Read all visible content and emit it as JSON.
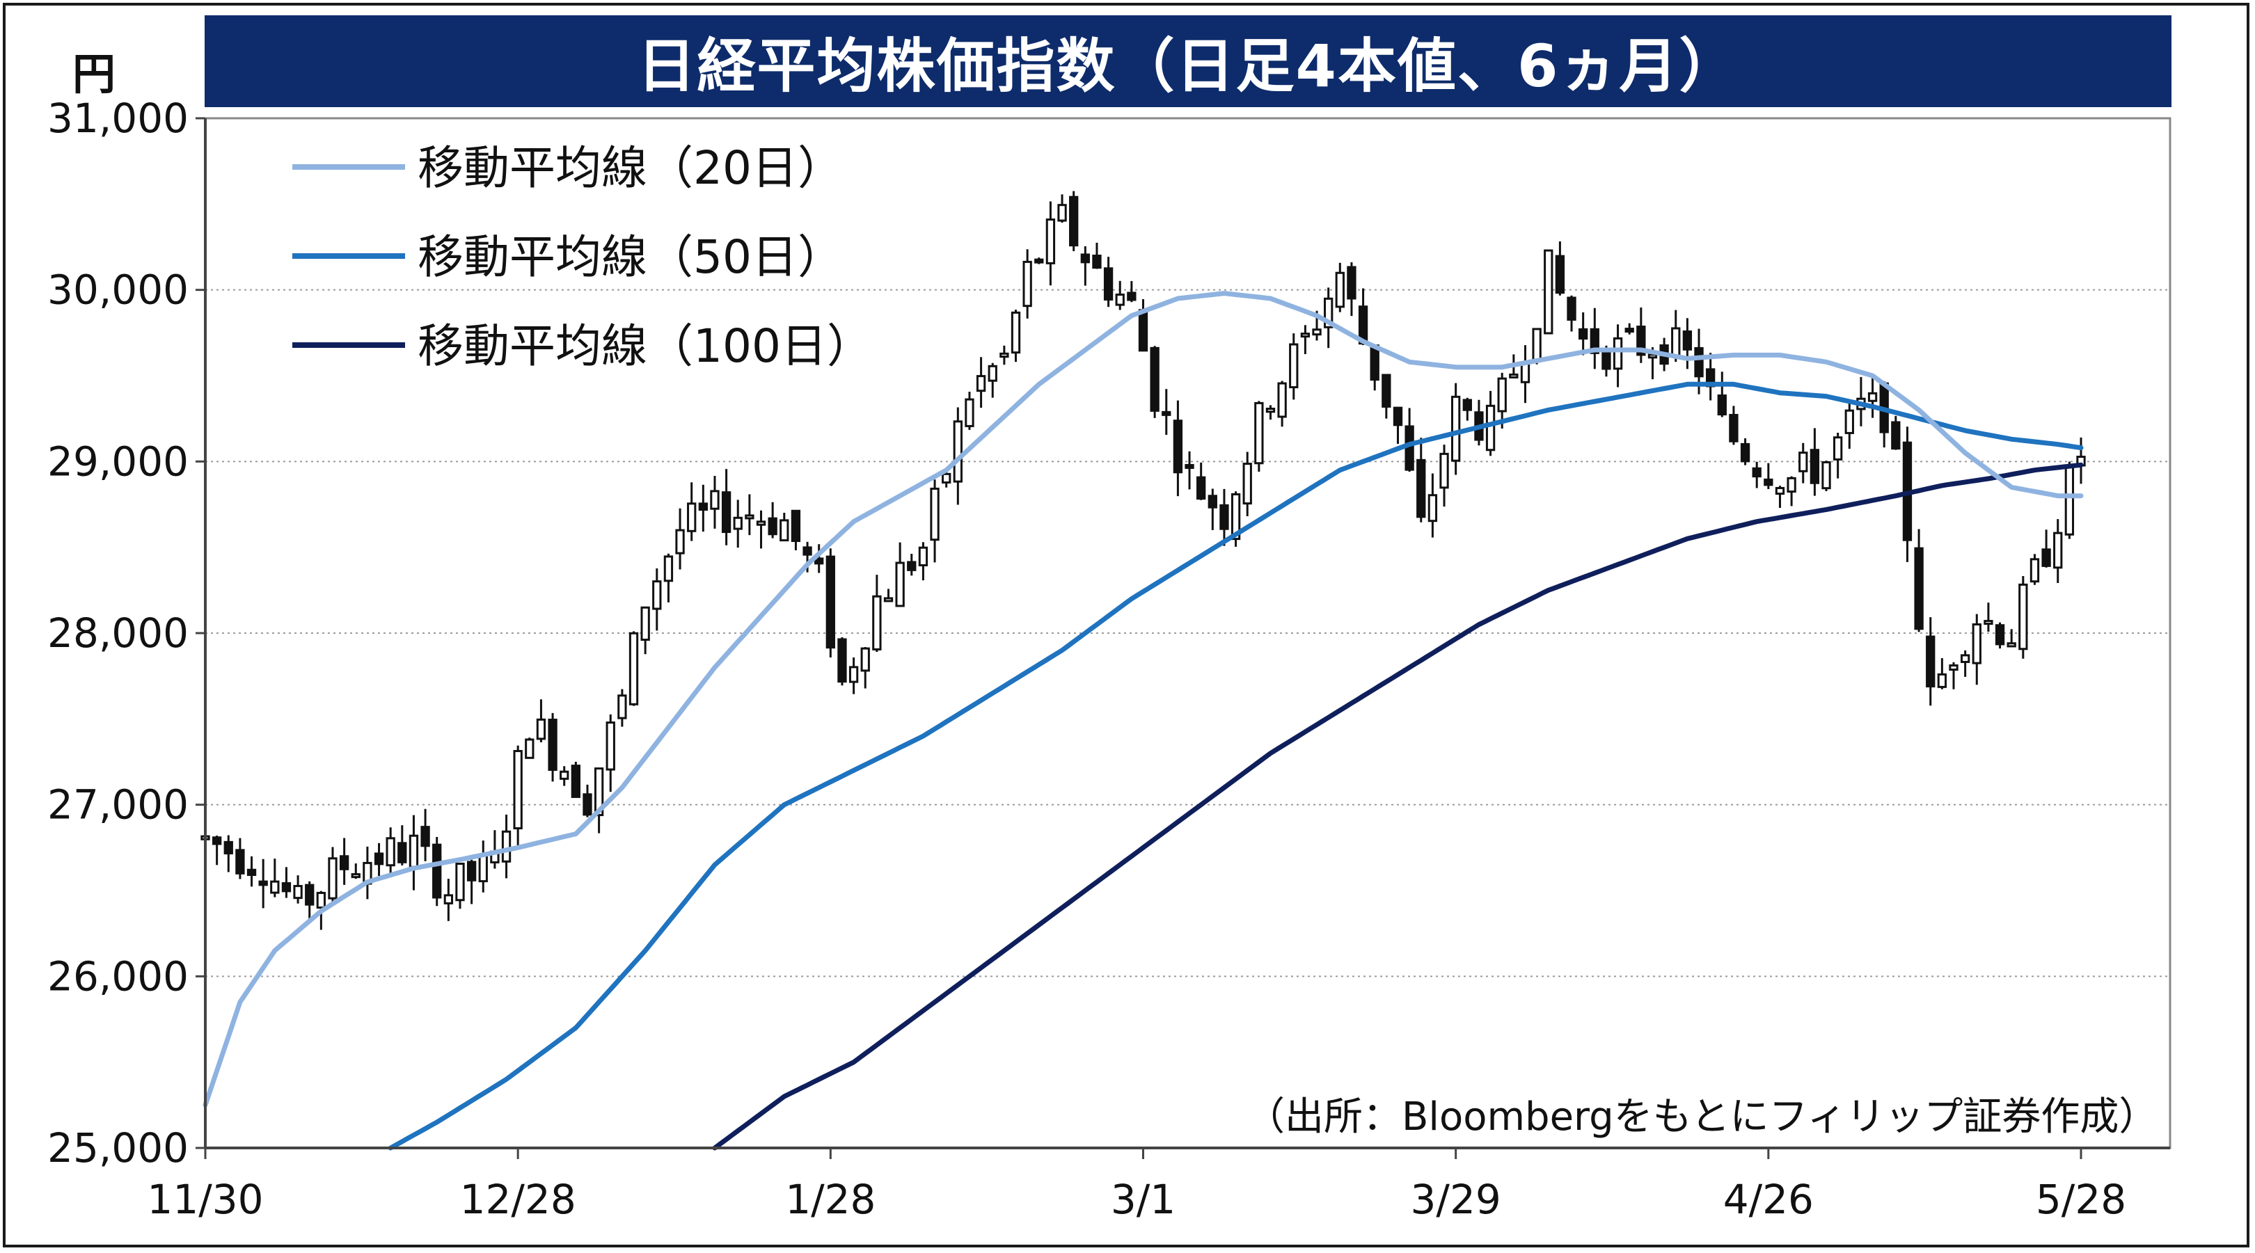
{
  "title": "日経平均株価指数（日足4本値、6ヵ月）",
  "unit": "円",
  "source": "（出所：Bloombergをもとにフィリップ証券作成）",
  "colors": {
    "ma20": "#8fb3e0",
    "ma50": "#1f73bf",
    "ma100": "#0f1f5c",
    "candle": "#111111",
    "title_bg": "#0e2c6b"
  },
  "chart_data": {
    "type": "candlestick",
    "title": "日経平均株価指数（日足4本値、6ヵ月）",
    "ylabel": "円",
    "ylim": [
      25000,
      31000
    ],
    "yticks": [
      {
        "value": 25000,
        "label": "25,000"
      },
      {
        "value": 26000,
        "label": "26,000"
      },
      {
        "value": 27000,
        "label": "27,000"
      },
      {
        "value": 28000,
        "label": "28,000"
      },
      {
        "value": 29000,
        "label": "29,000"
      },
      {
        "value": 30000,
        "label": "30,000"
      },
      {
        "value": 31000,
        "label": "31,000"
      }
    ],
    "xticks": [
      {
        "index": 0,
        "label": "11/30"
      },
      {
        "index": 27,
        "label": "12/28"
      },
      {
        "index": 54,
        "label": "1/28"
      },
      {
        "index": 81,
        "label": "3/1"
      },
      {
        "index": 108,
        "label": "3/29"
      },
      {
        "index": 135,
        "label": "4/26"
      },
      {
        "index": 162,
        "label": "5/28"
      }
    ],
    "grid": true,
    "legend_position": "top-left",
    "legend": [
      {
        "key": "ma20",
        "label": "移動平均線（20日）"
      },
      {
        "key": "ma50",
        "label": "移動平均線（50日）"
      },
      {
        "key": "ma100",
        "label": "移動平均線（100日）"
      }
    ],
    "ohlc_anchors": [
      [
        0,
        26800
      ],
      [
        5,
        26650
      ],
      [
        8,
        26400
      ],
      [
        12,
        26650
      ],
      [
        18,
        26750
      ],
      [
        21,
        26500
      ],
      [
        25,
        26650
      ],
      [
        28,
        27500
      ],
      [
        33,
        27050
      ],
      [
        36,
        27600
      ],
      [
        38,
        28200
      ],
      [
        41,
        28600
      ],
      [
        44,
        28700
      ],
      [
        47,
        28700
      ],
      [
        50,
        28650
      ],
      [
        53,
        28300
      ],
      [
        55,
        27700
      ],
      [
        58,
        28200
      ],
      [
        62,
        28500
      ],
      [
        66,
        29400
      ],
      [
        69,
        29600
      ],
      [
        71,
        30100
      ],
      [
        74,
        30400
      ],
      [
        77,
        30100
      ],
      [
        80,
        29900
      ],
      [
        82,
        29400
      ],
      [
        85,
        28900
      ],
      [
        88,
        28700
      ],
      [
        92,
        29400
      ],
      [
        95,
        29700
      ],
      [
        98,
        30100
      ],
      [
        100,
        29700
      ],
      [
        103,
        29200
      ],
      [
        105,
        28600
      ],
      [
        108,
        29300
      ],
      [
        111,
        29200
      ],
      [
        114,
        29700
      ],
      [
        116,
        30100
      ],
      [
        119,
        29700
      ],
      [
        122,
        29650
      ],
      [
        126,
        29700
      ],
      [
        129,
        29550
      ],
      [
        131,
        29200
      ],
      [
        134,
        29000
      ],
      [
        137,
        28900
      ],
      [
        140,
        29000
      ],
      [
        143,
        29300
      ],
      [
        145,
        29300
      ],
      [
        147,
        28600
      ],
      [
        149,
        27600
      ],
      [
        151,
        27900
      ],
      [
        153,
        28100
      ],
      [
        156,
        28000
      ],
      [
        159,
        28500
      ],
      [
        162,
        29050
      ]
    ],
    "moving_averages": {
      "ma20": [
        [
          0,
          25250
        ],
        [
          3,
          25850
        ],
        [
          6,
          26150
        ],
        [
          10,
          26380
        ],
        [
          14,
          26550
        ],
        [
          18,
          26630
        ],
        [
          22,
          26680
        ],
        [
          27,
          26750
        ],
        [
          32,
          26830
        ],
        [
          36,
          27100
        ],
        [
          40,
          27450
        ],
        [
          44,
          27800
        ],
        [
          48,
          28100
        ],
        [
          52,
          28400
        ],
        [
          56,
          28650
        ],
        [
          60,
          28800
        ],
        [
          64,
          28950
        ],
        [
          68,
          29200
        ],
        [
          72,
          29450
        ],
        [
          76,
          29650
        ],
        [
          80,
          29850
        ],
        [
          84,
          29950
        ],
        [
          88,
          29980
        ],
        [
          92,
          29950
        ],
        [
          96,
          29850
        ],
        [
          100,
          29700
        ],
        [
          104,
          29580
        ],
        [
          108,
          29550
        ],
        [
          112,
          29550
        ],
        [
          116,
          29600
        ],
        [
          120,
          29650
        ],
        [
          124,
          29650
        ],
        [
          128,
          29600
        ],
        [
          132,
          29620
        ],
        [
          136,
          29620
        ],
        [
          140,
          29580
        ],
        [
          144,
          29500
        ],
        [
          148,
          29300
        ],
        [
          152,
          29050
        ],
        [
          156,
          28850
        ],
        [
          160,
          28800
        ],
        [
          162,
          28800
        ]
      ],
      "ma50": [
        [
          16,
          25000
        ],
        [
          20,
          25150
        ],
        [
          26,
          25400
        ],
        [
          32,
          25700
        ],
        [
          38,
          26150
        ],
        [
          44,
          26650
        ],
        [
          50,
          27000
        ],
        [
          56,
          27200
        ],
        [
          62,
          27400
        ],
        [
          68,
          27650
        ],
        [
          74,
          27900
        ],
        [
          80,
          28200
        ],
        [
          86,
          28450
        ],
        [
          92,
          28700
        ],
        [
          98,
          28950
        ],
        [
          104,
          29100
        ],
        [
          110,
          29200
        ],
        [
          116,
          29300
        ],
        [
          120,
          29350
        ],
        [
          124,
          29400
        ],
        [
          128,
          29450
        ],
        [
          132,
          29450
        ],
        [
          136,
          29400
        ],
        [
          140,
          29380
        ],
        [
          144,
          29320
        ],
        [
          148,
          29250
        ],
        [
          152,
          29180
        ],
        [
          156,
          29130
        ],
        [
          160,
          29100
        ],
        [
          162,
          29080
        ]
      ],
      "ma100": [
        [
          44,
          25000
        ],
        [
          50,
          25300
        ],
        [
          56,
          25500
        ],
        [
          62,
          25800
        ],
        [
          68,
          26100
        ],
        [
          74,
          26400
        ],
        [
          80,
          26700
        ],
        [
          86,
          27000
        ],
        [
          92,
          27300
        ],
        [
          98,
          27550
        ],
        [
          104,
          27800
        ],
        [
          110,
          28050
        ],
        [
          116,
          28250
        ],
        [
          122,
          28400
        ],
        [
          128,
          28550
        ],
        [
          134,
          28650
        ],
        [
          140,
          28720
        ],
        [
          146,
          28800
        ],
        [
          150,
          28860
        ],
        [
          154,
          28900
        ],
        [
          158,
          28950
        ],
        [
          162,
          28980
        ]
      ]
    }
  }
}
